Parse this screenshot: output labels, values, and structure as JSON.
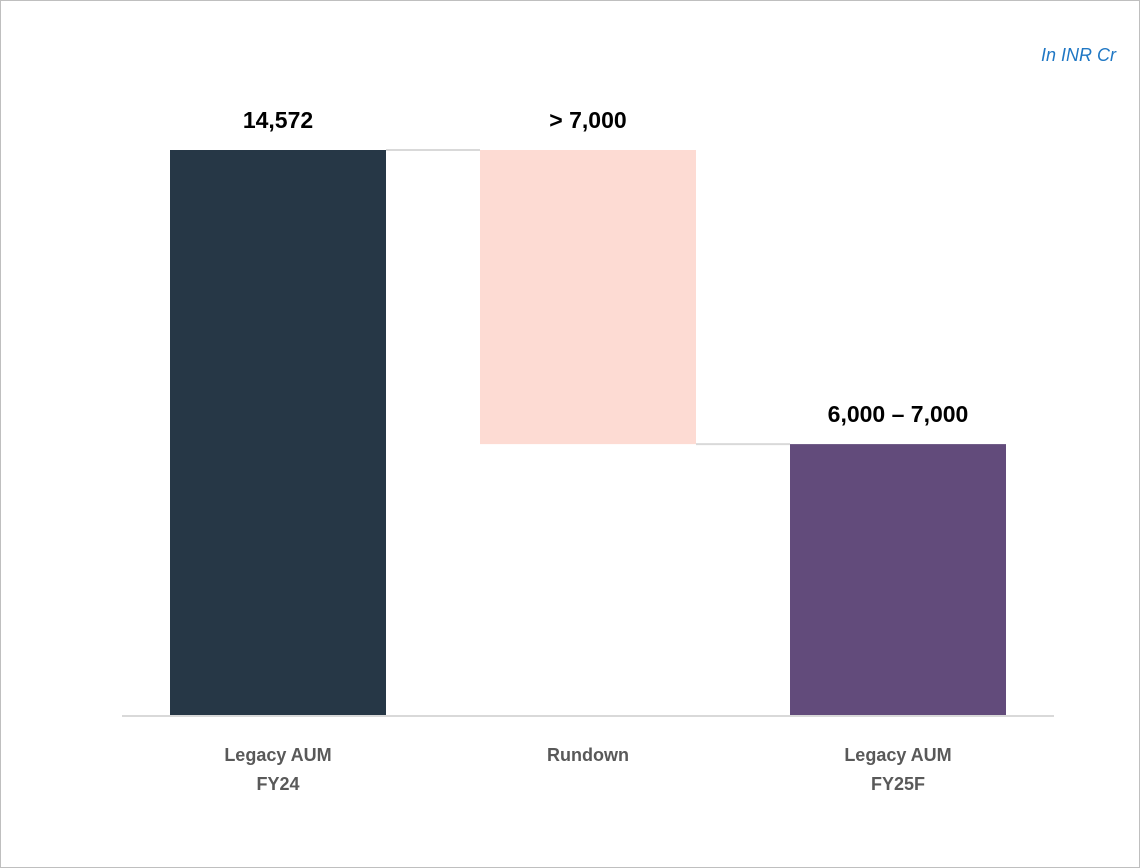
{
  "unit_note": "In INR Cr",
  "chart_data": {
    "type": "bar",
    "subtype": "waterfall",
    "categories": [
      "Legacy AUM FY24",
      "Rundown",
      "Legacy AUM FY25F"
    ],
    "category_lines": [
      [
        "Legacy AUM",
        "FY24"
      ],
      [
        "Rundown"
      ],
      [
        "Legacy AUM",
        "FY25F"
      ]
    ],
    "bars": [
      {
        "label": "14,572",
        "start": 0,
        "end": 14572,
        "kind": "total"
      },
      {
        "label": "> 7,000",
        "start": 7000,
        "end": 14572,
        "kind": "decrease"
      },
      {
        "label": "6,000 – 7,000",
        "start": 0,
        "end": 7000,
        "kind": "total"
      }
    ],
    "colors": [
      "#263746",
      "#fddbd3",
      "#624b7b"
    ],
    "ylim": [
      0,
      14572
    ],
    "grid": false,
    "legend": "none"
  }
}
